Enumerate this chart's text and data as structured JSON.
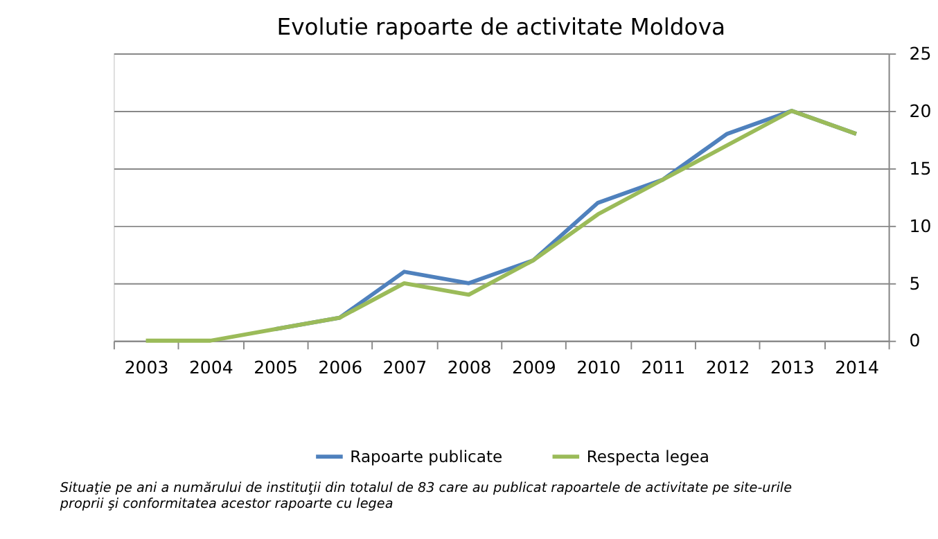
{
  "chart_data": {
    "type": "line",
    "title": "Evolutie rapoarte de activitate Moldova",
    "categories": [
      "2003",
      "2004",
      "2005",
      "2006",
      "2007",
      "2008",
      "2009",
      "2010",
      "2011",
      "2012",
      "2013",
      "2014"
    ],
    "series": [
      {
        "name": "Rapoarte publicate",
        "color": "#4f81bd",
        "values": [
          null,
          null,
          1,
          2,
          6,
          5,
          7,
          12,
          14,
          18,
          20,
          18
        ]
      },
      {
        "name": "Respecta legea",
        "color": "#9bbb59",
        "values": [
          0,
          0,
          1,
          2,
          5,
          4,
          7,
          11,
          14,
          17,
          20,
          18
        ]
      }
    ],
    "ylim": [
      0,
      25
    ],
    "yticks": [
      0,
      5,
      10,
      15,
      20,
      25
    ],
    "grid": "y",
    "legend": "bottom",
    "marker": "none",
    "line_style": "solid",
    "annotations": [
      "Situaţie pe ani a numărului de instituţii din totalul de 83 care au publicat rapoartele de activitate pe site-urile proprii şi conformitatea acestor rapoarte cu legea"
    ]
  }
}
